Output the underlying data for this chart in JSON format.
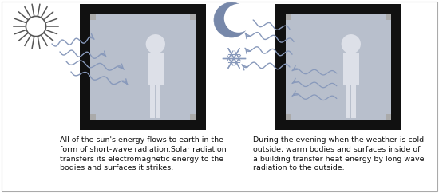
{
  "bg_color": "#ffffff",
  "panel_bg": "#b8bfcc",
  "wall_color": "#111111",
  "arrow_color": "#8899bb",
  "person_color": "#dde0e8",
  "person_outline": "#555566",
  "text_color": "#111111",
  "sun_color": "#555555",
  "moon_color": "#7788aa",
  "snow_color": "#8899bb",
  "border_color": "#aaaaaa",
  "caption_left": "All of the sun's energy flows to earth in the\nform of short-wave radiation.Solar radiation\ntransfers its electromagnetic energy to the\nbodies and surfaces it strikes.",
  "caption_right": "During the evening when the weather is cold\noutside, warm bodies and surfaces inside of\na building transfer heat energy by long wave\nradiation to the outside.",
  "caption_fontsize": 6.8,
  "fig_width": 5.5,
  "fig_height": 2.42
}
